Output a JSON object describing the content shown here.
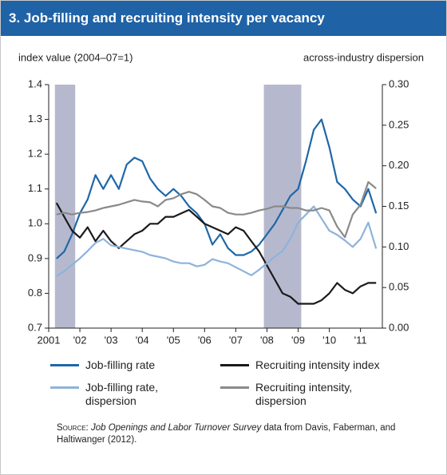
{
  "chart_data": {
    "type": "line",
    "title": "3. Job-filling and recruiting intensity per vacancy",
    "y_label": "index value (2004–07=1)",
    "y2_label": "across-industry dispersion",
    "x": [
      2001.25,
      2001.5,
      2001.75,
      2002,
      2002.25,
      2002.5,
      2002.75,
      2003,
      2003.25,
      2003.5,
      2003.75,
      2004,
      2004.25,
      2004.5,
      2004.75,
      2005,
      2005.25,
      2005.5,
      2005.75,
      2006,
      2006.25,
      2006.5,
      2006.75,
      2007,
      2007.25,
      2007.5,
      2007.75,
      2008,
      2008.25,
      2008.5,
      2008.75,
      2009,
      2009.25,
      2009.5,
      2009.75,
      2010,
      2010.25,
      2010.5,
      2010.75,
      2011,
      2011.25,
      2011.5
    ],
    "xlim": [
      2001,
      2011.7
    ],
    "xticks": [
      2001,
      {
        "value": 2002,
        "label": "'02"
      },
      {
        "value": 2003,
        "label": "'03"
      },
      {
        "value": 2004,
        "label": "'04"
      },
      {
        "value": 2005,
        "label": "'05"
      },
      {
        "value": 2006,
        "label": "'06"
      },
      {
        "value": 2007,
        "label": "'07"
      },
      {
        "value": 2008,
        "label": "'08"
      },
      {
        "value": 2009,
        "label": "'09"
      },
      {
        "value": 2010,
        "label": "'10"
      },
      {
        "value": 2011,
        "label": "'11"
      }
    ],
    "ylim": [
      0.7,
      1.4
    ],
    "yticks": [
      0.7,
      0.8,
      0.9,
      {
        "value": 1,
        "label": "1.0"
      },
      1.1,
      1.2,
      1.3,
      1.4
    ],
    "y2lim": [
      0,
      0.3
    ],
    "y2ticks": [
      {
        "value": 0,
        "label": "0.00"
      },
      {
        "value": 0.05,
        "label": "0.05"
      },
      {
        "value": 0.1,
        "label": "0.10"
      },
      {
        "value": 0.15,
        "label": "0.15"
      },
      {
        "value": 0.2,
        "label": "0.20"
      },
      {
        "value": 0.25,
        "label": "0.25"
      },
      {
        "value": 0.3,
        "label": "0.30"
      }
    ],
    "shaded_periods": [
      [
        2001.2,
        2001.85
      ],
      [
        2007.9,
        2009.1
      ]
    ],
    "shade_color": "#a9adc6",
    "series": [
      {
        "name": "Job-filling rate",
        "color": "#1f67a8",
        "values": [
          0.9,
          0.92,
          0.97,
          1.03,
          1.07,
          1.14,
          1.1,
          1.14,
          1.1,
          1.17,
          1.19,
          1.18,
          1.13,
          1.1,
          1.08,
          1.1,
          1.08,
          1.05,
          1.03,
          1.0,
          0.94,
          0.97,
          0.93,
          0.91,
          0.91,
          0.92,
          0.94,
          0.97,
          1.0,
          1.04,
          1.08,
          1.1,
          1.18,
          1.27,
          1.3,
          1.22,
          1.12,
          1.1,
          1.07,
          1.05,
          1.1,
          1.03
        ]
      },
      {
        "name": "Recruiting intensity index",
        "color": "#1a1a1a",
        "values": [
          1.06,
          1.02,
          0.98,
          0.96,
          0.99,
          0.95,
          0.98,
          0.95,
          0.93,
          0.95,
          0.97,
          0.98,
          1.0,
          1.0,
          1.02,
          1.02,
          1.03,
          1.04,
          1.02,
          1.0,
          0.99,
          0.98,
          0.97,
          0.99,
          0.98,
          0.95,
          0.92,
          0.88,
          0.84,
          0.8,
          0.79,
          0.77,
          0.77,
          0.77,
          0.78,
          0.8,
          0.83,
          0.81,
          0.8,
          0.82,
          0.83,
          0.83
        ]
      },
      {
        "name": "Job-filling rate, dispersion",
        "color": "#8db3dc",
        "axis": "y2",
        "values": [
          0.064,
          0.07,
          0.078,
          0.086,
          0.095,
          0.105,
          0.11,
          0.102,
          0.1,
          0.098,
          0.096,
          0.094,
          0.09,
          0.088,
          0.086,
          0.082,
          0.08,
          0.08,
          0.076,
          0.078,
          0.085,
          0.082,
          0.08,
          0.075,
          0.07,
          0.065,
          0.072,
          0.08,
          0.088,
          0.095,
          0.11,
          0.13,
          0.14,
          0.15,
          0.135,
          0.12,
          0.115,
          0.108,
          0.1,
          0.11,
          0.13,
          0.098
        ]
      },
      {
        "name": "Recruiting intensity, dispersion",
        "color": "#8a8a8a",
        "axis": "y2",
        "values": [
          0.14,
          0.142,
          0.14,
          0.142,
          0.143,
          0.145,
          0.148,
          0.15,
          0.152,
          0.155,
          0.158,
          0.156,
          0.155,
          0.15,
          0.158,
          0.16,
          0.165,
          0.168,
          0.165,
          0.158,
          0.15,
          0.148,
          0.142,
          0.14,
          0.14,
          0.142,
          0.145,
          0.147,
          0.15,
          0.15,
          0.148,
          0.148,
          0.145,
          0.145,
          0.148,
          0.145,
          0.125,
          0.112,
          0.14,
          0.152,
          0.18,
          0.172
        ]
      }
    ],
    "source_label": "Source:",
    "source_title": "Job Openings and Labor Turnover Survey",
    "source_rest": "data from Davis, Faberman, and Haltiwanger (2012)."
  }
}
